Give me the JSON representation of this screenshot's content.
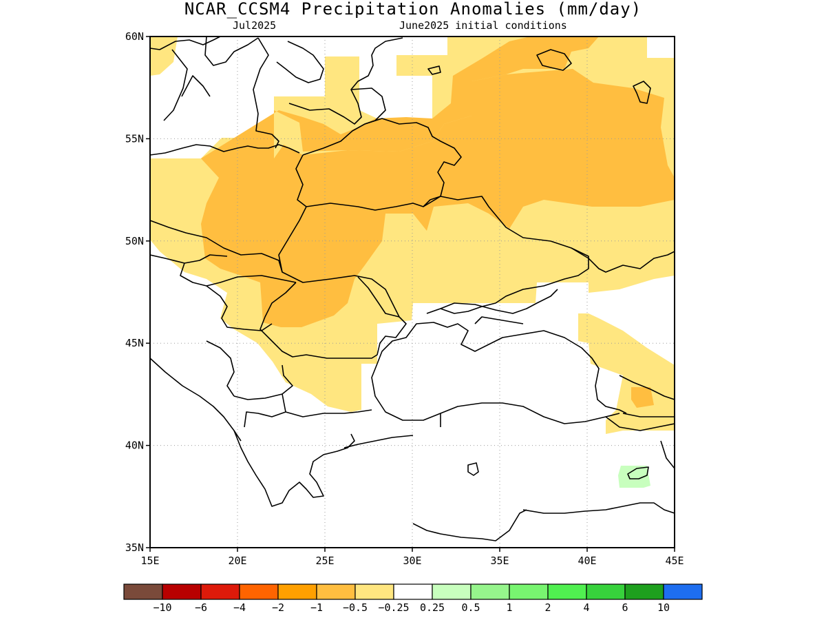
{
  "title": "NCAR_CCSM4 Precipitation Anomalies (mm/day)",
  "subtitle_left": "Jul2025",
  "subtitle_right": "June2025 initial conditions",
  "map": {
    "lon_range": [
      15,
      45
    ],
    "lat_range": [
      35,
      60
    ],
    "lon_ticks": [
      "15E",
      "20E",
      "25E",
      "30E",
      "35E",
      "40E",
      "45E"
    ],
    "lat_ticks": [
      "60N",
      "55N",
      "50N",
      "45N",
      "40N",
      "35N"
    ],
    "grid": "dotted every 5 degrees",
    "colors": {
      "dry_light": "#ffe680",
      "dry_mid": "#ffbe40",
      "dry_strong": "#ffa01e",
      "wet_light": "#c8ffbe",
      "coast": "#000000"
    }
  },
  "colorbar": {
    "colors": [
      "#7a4a3a",
      "#b80000",
      "#de1a0a",
      "#ff6400",
      "#ffa000",
      "#ffbe40",
      "#ffe680",
      "#ffffff",
      "#c8ffbe",
      "#96f58c",
      "#78f570",
      "#50f050",
      "#37d23c",
      "#1ea01e",
      "#1e6ef0"
    ],
    "labels": [
      "−10",
      "−6",
      "−4",
      "−2",
      "−1",
      "−0.5",
      "−0.25",
      "0.25",
      "0.5",
      "1",
      "2",
      "4",
      "6",
      "10"
    ]
  }
}
